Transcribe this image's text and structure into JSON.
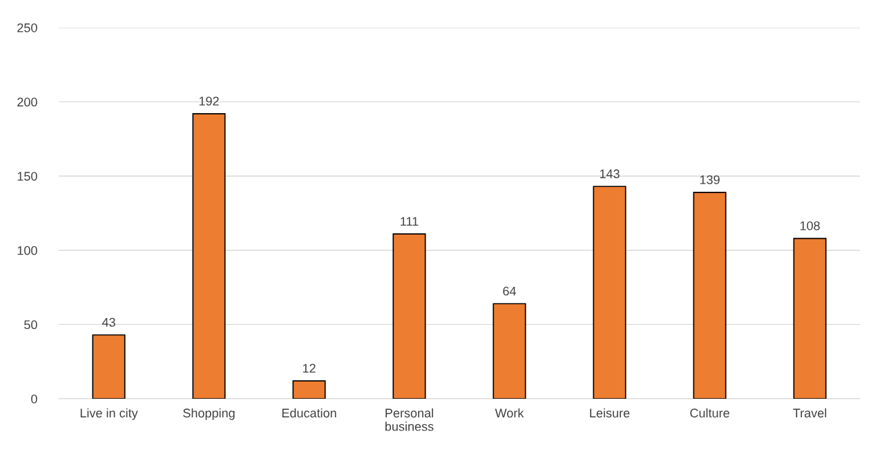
{
  "chart_data": {
    "type": "bar",
    "categories": [
      "Live in city",
      "Shopping",
      "Education",
      "Personal business",
      "Work",
      "Leisure",
      "Culture",
      "Travel"
    ],
    "values": [
      43,
      192,
      12,
      111,
      64,
      143,
      139,
      108
    ],
    "color": "#ed7d31",
    "ylim": [
      0,
      250
    ],
    "yticks": [
      0,
      50,
      100,
      150,
      200,
      250
    ],
    "grid": "y",
    "data_labels": true
  }
}
